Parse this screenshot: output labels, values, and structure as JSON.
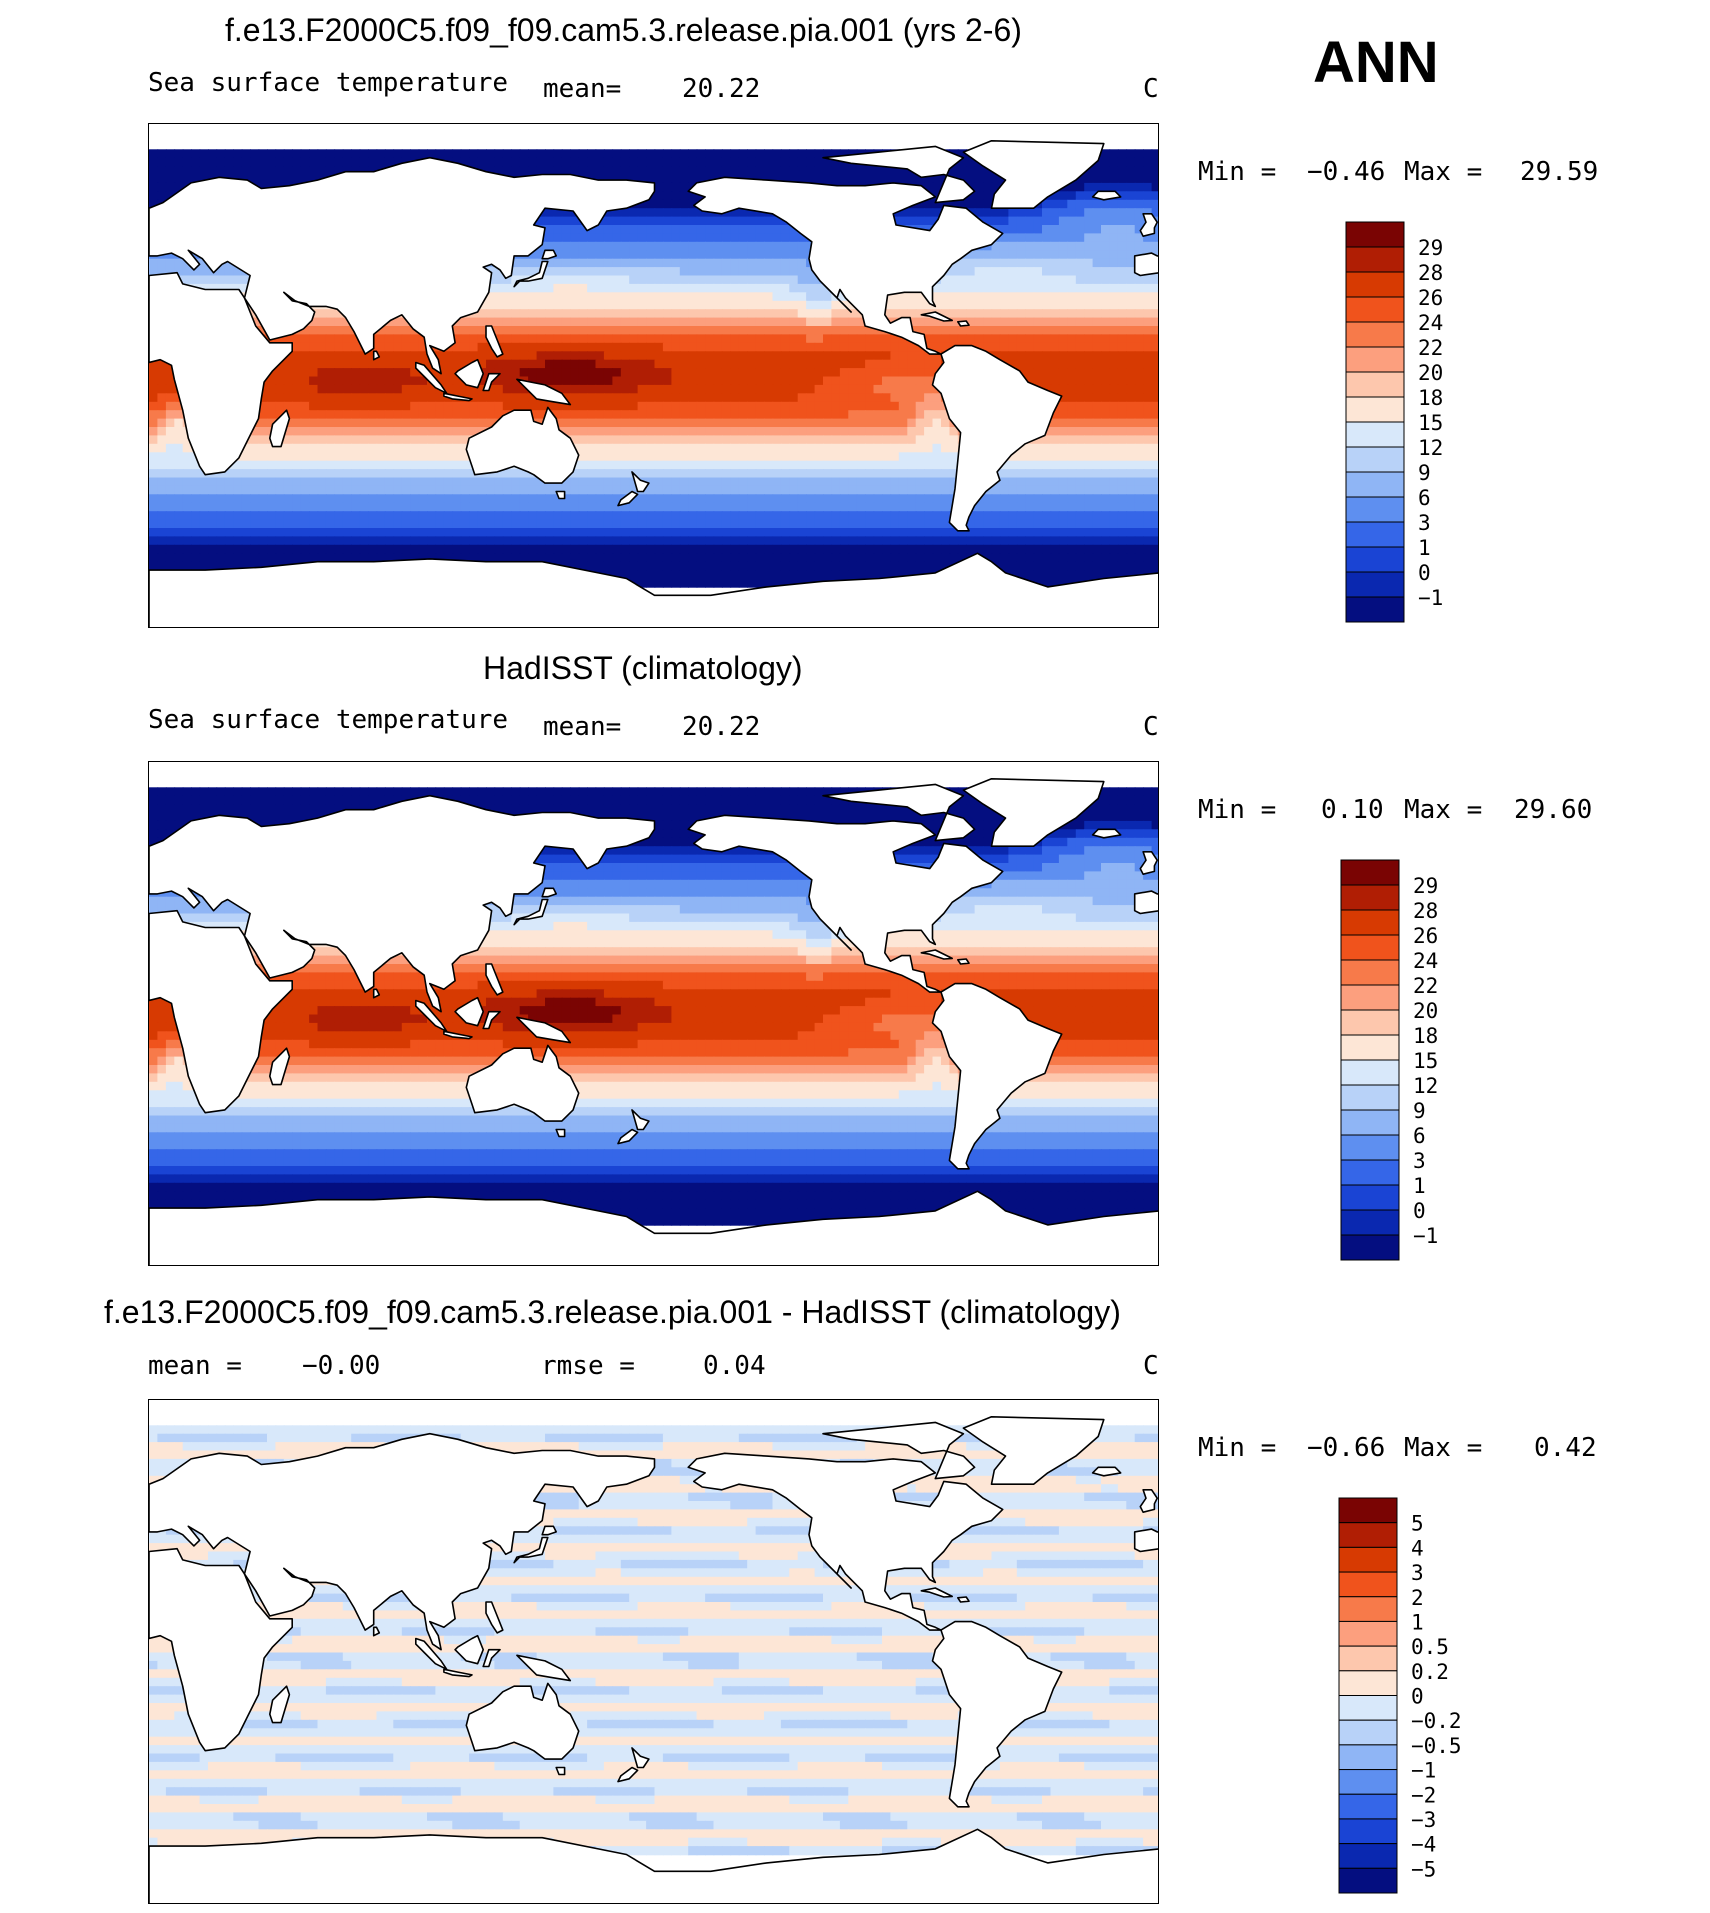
{
  "season_label": "ANN",
  "panels": [
    {
      "id": "model",
      "title": "f.e13.F2000C5.f09_f09.cam5.3.release.pia.001 (yrs 2-6)",
      "left_label": "Sea surface temperature",
      "mean_label": "mean=",
      "mean_value": "20.22",
      "units": "C",
      "min_label": "Min =",
      "min_value": "−0.46",
      "max_label": "Max =",
      "max_value": "29.59",
      "levels": [
        "29",
        "28",
        "26",
        "24",
        "22",
        "20",
        "18",
        "15",
        "12",
        "9",
        "6",
        "3",
        "1",
        "0",
        "−1"
      ],
      "colors": [
        "#7a0403",
        "#b01e04",
        "#d73a02",
        "#f0531c",
        "#f77a4a",
        "#fc9f7e",
        "#fdc7ad",
        "#fde6d6",
        "#d8e8fa",
        "#b8d2f8",
        "#8fb5f5",
        "#5e8ff0",
        "#3566e8",
        "#1a44d4",
        "#0a28b0",
        "#040e80"
      ],
      "field": "sst"
    },
    {
      "id": "obs",
      "title": "HadISST (climatology)",
      "left_label": "Sea surface temperature",
      "mean_label": "mean=",
      "mean_value": "20.22",
      "units": "C",
      "min_label": "Min =",
      "min_value": "0.10",
      "max_label": "Max =",
      "max_value": "29.60",
      "levels": [
        "29",
        "28",
        "26",
        "24",
        "22",
        "20",
        "18",
        "15",
        "12",
        "9",
        "6",
        "3",
        "1",
        "0",
        "−1"
      ],
      "colors": [
        "#7a0403",
        "#b01e04",
        "#d73a02",
        "#f0531c",
        "#f77a4a",
        "#fc9f7e",
        "#fdc7ad",
        "#fde6d6",
        "#d8e8fa",
        "#b8d2f8",
        "#8fb5f5",
        "#5e8ff0",
        "#3566e8",
        "#1a44d4",
        "#0a28b0",
        "#040e80"
      ],
      "field": "sst"
    },
    {
      "id": "diff",
      "title": "f.e13.F2000C5.f09_f09.cam5.3.release.pia.001 - HadISST (climatology)",
      "left_label": "",
      "mean_label": "mean =",
      "mean_value": "−0.00",
      "rmse_label": "rmse =",
      "rmse_value": "0.04",
      "units": "C",
      "min_label": "Min =",
      "min_value": "−0.66",
      "max_label": "Max =",
      "max_value": "0.42",
      "levels": [
        "5",
        "4",
        "3",
        "2",
        "1",
        "0.5",
        "0.2",
        "0",
        "−0.2",
        "−0.5",
        "−1",
        "−2",
        "−3",
        "−4",
        "−5"
      ],
      "colors": [
        "#7a0403",
        "#b01e04",
        "#d73a02",
        "#f0531c",
        "#f77a4a",
        "#fc9f7e",
        "#fdc7ad",
        "#fde6d6",
        "#d8e8fa",
        "#b8d2f8",
        "#8fb5f5",
        "#5e8ff0",
        "#3566e8",
        "#1a44d4",
        "#0a28b0",
        "#040e80"
      ],
      "field": "diff"
    }
  ]
}
